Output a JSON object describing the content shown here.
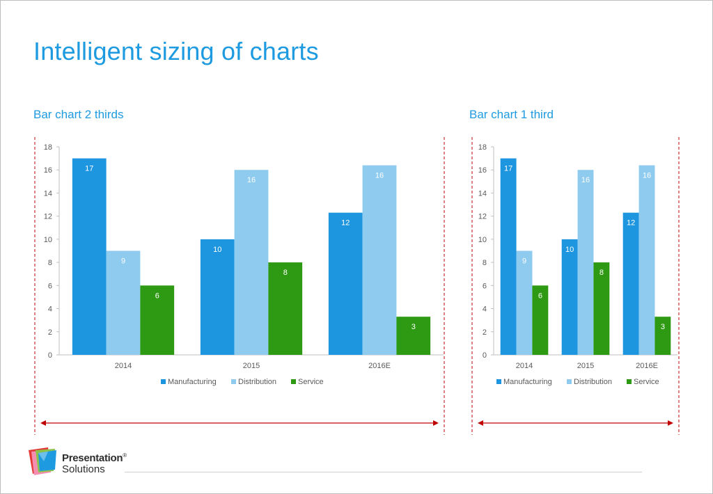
{
  "page": {
    "title": "Intelligent sizing of charts"
  },
  "colors": {
    "accent": "#1e9be0",
    "manufacturing": "#1e96df",
    "distribution": "#8ecbef",
    "service": "#2e9a13",
    "marker": "#c00000"
  },
  "chart_data": [
    {
      "type": "bar",
      "title": "Bar chart 2 thirds",
      "categories": [
        "2014",
        "2015",
        "2016E"
      ],
      "series": [
        {
          "name": "Manufacturing",
          "values": [
            17,
            10,
            12.3
          ],
          "labels": [
            "17",
            "10",
            "12"
          ]
        },
        {
          "name": "Distribution",
          "values": [
            9,
            16,
            16.4
          ],
          "labels": [
            "9",
            "16",
            "16"
          ]
        },
        {
          "name": "Service",
          "values": [
            6,
            8,
            3.3
          ],
          "labels": [
            "6",
            "8",
            "3"
          ]
        }
      ],
      "ylim": [
        0,
        18
      ],
      "yticks": [
        "0",
        "2",
        "4",
        "6",
        "8",
        "10",
        "12",
        "14",
        "16",
        "18"
      ],
      "legend": "bottom"
    },
    {
      "type": "bar",
      "title": "Bar chart 1 third",
      "categories": [
        "2014",
        "2015",
        "2016E"
      ],
      "series": [
        {
          "name": "Manufacturing",
          "values": [
            17,
            10,
            12.3
          ],
          "labels": [
            "17",
            "10",
            "12"
          ]
        },
        {
          "name": "Distribution",
          "values": [
            9,
            16,
            16.4
          ],
          "labels": [
            "9",
            "16",
            "16"
          ]
        },
        {
          "name": "Service",
          "values": [
            6,
            8,
            3.3
          ],
          "labels": [
            "6",
            "8",
            "3"
          ]
        }
      ],
      "ylim": [
        0,
        18
      ],
      "yticks": [
        "0",
        "2",
        "4",
        "6",
        "8",
        "10",
        "12",
        "14",
        "16",
        "18"
      ],
      "legend": "bottom"
    }
  ],
  "logo": {
    "line1": "Presentation",
    "reg": "®",
    "line2": "Solutions"
  }
}
